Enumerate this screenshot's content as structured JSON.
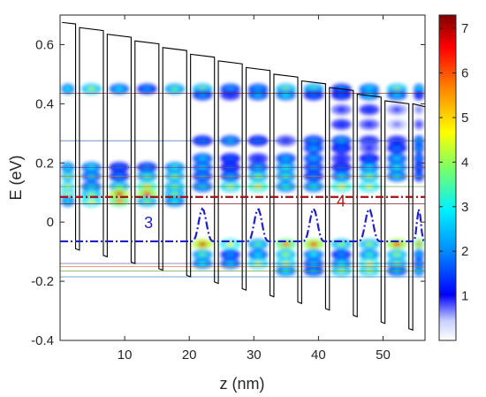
{
  "chart_data": {
    "type": "heatmap",
    "xlabel": "z (nm)",
    "ylabel": "E (eV)",
    "xlim": [
      0,
      56.5
    ],
    "ylim": [
      -0.4,
      0.7
    ],
    "x_ticks": [
      10,
      20,
      30,
      40,
      50
    ],
    "y_ticks": [
      -0.4,
      -0.2,
      0,
      0.2,
      0.4,
      0.6
    ],
    "x_tick_labels": [
      "10",
      "20",
      "30",
      "40",
      "50"
    ],
    "y_tick_labels": [
      "-0.4",
      "-0.2",
      "0",
      "0.2",
      "0.4",
      "0.6"
    ],
    "colorbar": {
      "range": [
        0,
        7.3
      ],
      "ticks": [
        1,
        2,
        3,
        4,
        5,
        6,
        7
      ],
      "tick_labels": [
        "1",
        "2",
        "3",
        "4",
        "5",
        "6",
        "7"
      ],
      "colormap": "jet-white"
    },
    "annotations": [
      {
        "text": "3",
        "x": 13.7,
        "y": -0.02,
        "color": "#2020c8"
      },
      {
        "text": "4",
        "x": 43.5,
        "y": 0.053,
        "color": "#b02020"
      }
    ],
    "period_start": 2.4,
    "period": 4.3,
    "well_count": 13,
    "well_width": 0.6,
    "barrier_top_start": 0.67,
    "barrier_top_end": 0.4,
    "well_bottom_start": -0.09,
    "well_bottom_end": -0.36,
    "state_lines": [
      {
        "y": 0.435,
        "color": "#7a1f1f"
      },
      {
        "y": 0.275,
        "color": "#3a6fb0"
      },
      {
        "y": 0.185,
        "color": "#6a4a8a"
      },
      {
        "y": 0.155,
        "color": "#c8742a"
      },
      {
        "y": 0.12,
        "color": "#5fa03a"
      },
      {
        "y": 0.062,
        "color": "#7a1f1f"
      },
      {
        "y": -0.14,
        "color": "#6a4a8a"
      },
      {
        "y": -0.15,
        "color": "#c8742a"
      },
      {
        "y": -0.165,
        "color": "#5fa03a"
      },
      {
        "y": -0.185,
        "color": "#3a8fd0"
      }
    ],
    "dashed_levels": [
      {
        "name": "3",
        "y": -0.065,
        "color": "#2020c8",
        "style": "dash-dot",
        "amplitude": 0.11
      },
      {
        "name": "4",
        "y": 0.085,
        "color": "#a01010",
        "style": "dash-dot",
        "amplitude": 0.0
      }
    ],
    "density_rows": [
      {
        "y": 0.45,
        "x_from": 0.5,
        "x_to": 56,
        "intensity": 2.5
      },
      {
        "y": 0.43,
        "x_from": 21,
        "x_to": 56,
        "intensity": 1.8
      },
      {
        "y": 0.38,
        "x_from": 42,
        "x_to": 56,
        "intensity": 0.9
      },
      {
        "y": 0.33,
        "x_from": 42,
        "x_to": 56,
        "intensity": 0.9
      },
      {
        "y": 0.275,
        "x_from": 21,
        "x_to": 56,
        "intensity": 1.5
      },
      {
        "y": 0.25,
        "x_from": 36,
        "x_to": 56,
        "intensity": 1.4
      },
      {
        "y": 0.215,
        "x_from": 21,
        "x_to": 56,
        "intensity": 1.6
      },
      {
        "y": 0.185,
        "x_from": 0.5,
        "x_to": 56,
        "intensity": 2.0
      },
      {
        "y": 0.155,
        "x_from": 0.5,
        "x_to": 56,
        "intensity": 2.4
      },
      {
        "y": 0.12,
        "x_from": 0.5,
        "x_to": 48,
        "intensity": 3.2
      },
      {
        "y": 0.095,
        "x_from": 0.5,
        "x_to": 22,
        "intensity": 4.5
      },
      {
        "y": 0.07,
        "x_from": 0.5,
        "x_to": 22,
        "intensity": 3.6
      },
      {
        "y": -0.075,
        "x_from": 21,
        "x_to": 56,
        "intensity": 4.2
      },
      {
        "y": -0.11,
        "x_from": 21,
        "x_to": 56,
        "intensity": 2.5
      },
      {
        "y": -0.14,
        "x_from": 21,
        "x_to": 56,
        "intensity": 3.0
      },
      {
        "y": -0.165,
        "x_from": 33,
        "x_to": 56,
        "intensity": 2.8
      }
    ]
  }
}
